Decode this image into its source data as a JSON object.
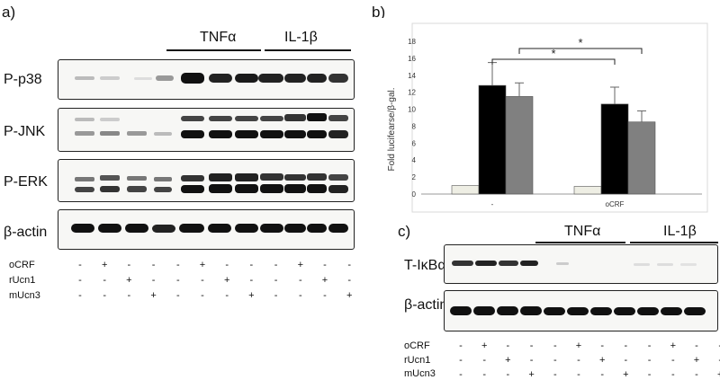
{
  "panels": {
    "a": {
      "label": "a)"
    },
    "b": {
      "label": "b)"
    },
    "c": {
      "label": "c)"
    }
  },
  "panel_a": {
    "treatment_groups": [
      "TNFα",
      "IL-1β"
    ],
    "rows": [
      "P-p38",
      "P-JNK",
      "P-ERK",
      "β-actin"
    ],
    "conditions": [
      {
        "name": "oCRF",
        "signs": [
          "-",
          "+",
          "-",
          "-",
          "-",
          "+",
          "-",
          "-",
          "-",
          "+",
          "-",
          "-"
        ]
      },
      {
        "name": "rUcn1",
        "signs": [
          "-",
          "-",
          "+",
          "-",
          "-",
          "-",
          "+",
          "-",
          "-",
          "-",
          "+",
          "-"
        ]
      },
      {
        "name": "mUcn3",
        "signs": [
          "-",
          "-",
          "-",
          "+",
          "-",
          "-",
          "-",
          "+",
          "-",
          "-",
          "-",
          "+"
        ]
      }
    ]
  },
  "panel_c": {
    "treatment_groups": [
      "TNFα",
      "IL-1β"
    ],
    "rows": [
      "T-IκBα",
      "β-actin"
    ],
    "conditions": [
      {
        "name": "oCRF",
        "signs": [
          "-",
          "+",
          "-",
          "-",
          "-",
          "+",
          "-",
          "-",
          "-",
          "+",
          "-",
          "-"
        ]
      },
      {
        "name": "rUcn1",
        "signs": [
          "-",
          "-",
          "+",
          "-",
          "-",
          "-",
          "+",
          "-",
          "-",
          "-",
          "+",
          "-"
        ]
      },
      {
        "name": "mUcn3",
        "signs": [
          "-",
          "-",
          "-",
          "+",
          "-",
          "-",
          "-",
          "+",
          "-",
          "-",
          "-",
          "+"
        ]
      }
    ]
  },
  "chart_data": {
    "type": "bar",
    "title": "",
    "xlabel": "",
    "ylabel": "Fold lucifearse/β-gal.",
    "categories": [
      "-",
      "oCRF"
    ],
    "ylim": [
      0,
      18
    ],
    "yticks": [
      "0",
      "2",
      "4",
      "6",
      "8",
      "10",
      "12",
      "14",
      "16",
      "18"
    ],
    "grid": false,
    "series": [
      {
        "values": [
          1.0,
          0.9
        ],
        "errors": [
          0,
          0
        ],
        "color": "#eeeee4"
      },
      {
        "values": [
          12.8,
          10.6
        ],
        "errors": [
          2.7,
          2.0
        ],
        "color": "#000000"
      },
      {
        "values": [
          11.5,
          8.5
        ],
        "errors": [
          1.6,
          1.3
        ],
        "color": "#808080"
      }
    ],
    "significance": [
      "*",
      "*"
    ]
  }
}
